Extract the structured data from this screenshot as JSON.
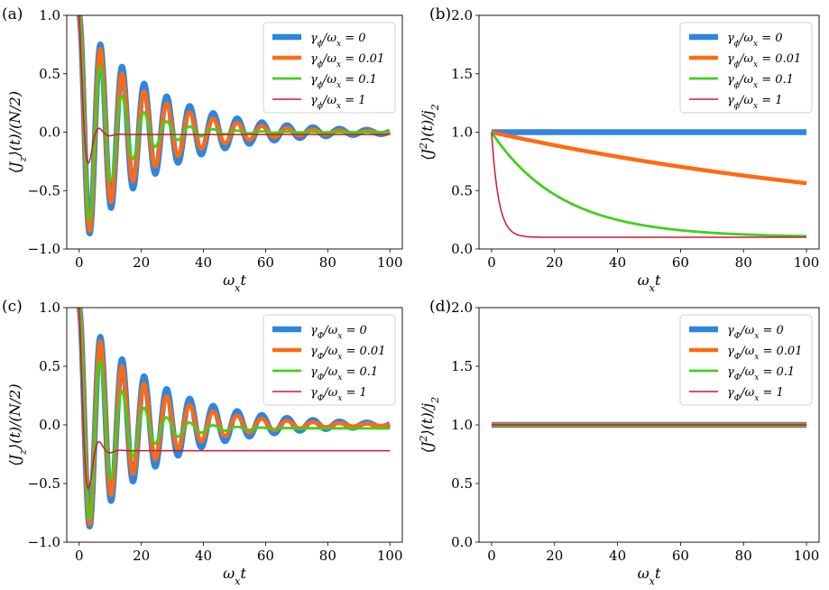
{
  "figure": {
    "colors": {
      "s0": "#2e86de",
      "s1": "#ff6a12",
      "s2": "#41d01c",
      "s3": "#d3172b"
    }
  },
  "chart_data": [
    {
      "panel": "(a)",
      "type": "line",
      "xlabel": "ω_x t",
      "ylabel": "⟨J_z⟩(t)/(N/2)",
      "xlim": [
        -4,
        104
      ],
      "ylim": [
        -1.0,
        1.0
      ],
      "xticks": [
        "0",
        "20",
        "40",
        "60",
        "80",
        "100"
      ],
      "yticks": [
        "−1.0",
        "−0.5",
        "0.0",
        "0.5",
        "1.0"
      ],
      "legend": {
        "position": "top-right",
        "prefix": "γ",
        "sub": "ϕ",
        "suffix": "/ω",
        "sub2": "x"
      },
      "series": [
        {
          "name": "0",
          "kind": "osc",
          "gamma": 0.042,
          "target": 0,
          "amp": 1
        },
        {
          "name": "0.01",
          "kind": "osc",
          "gamma": 0.05,
          "target": 0,
          "amp": 1
        },
        {
          "name": "0.1",
          "kind": "osc",
          "gamma": 0.085,
          "target": 0,
          "amp": 1
        },
        {
          "name": "1",
          "kind": "osc",
          "gamma": 0.45,
          "target": -0.02,
          "amp": 1
        }
      ]
    },
    {
      "panel": "(b)",
      "type": "line",
      "xlabel": "ω_x t",
      "ylabel": "⟨J²⟩(t)/j₂",
      "xlim": [
        -4,
        104
      ],
      "ylim": [
        0.0,
        2.0
      ],
      "xticks": [
        "0",
        "20",
        "40",
        "60",
        "80",
        "100"
      ],
      "yticks": [
        "0.0",
        "0.5",
        "1.0",
        "1.5",
        "2.0"
      ],
      "legend": {
        "position": "top-right",
        "prefix": "γ",
        "sub": "ϕ",
        "suffix": "/ω",
        "sub2": "x"
      },
      "series": [
        {
          "name": "0",
          "kind": "flat",
          "value": 1.0
        },
        {
          "name": "0.01",
          "kind": "decay",
          "rate": 0.00665,
          "floor": 0.1
        },
        {
          "name": "0.1",
          "kind": "decay",
          "rate": 0.045,
          "floor": 0.1
        },
        {
          "name": "1",
          "kind": "decay",
          "rate": 0.45,
          "floor": 0.1
        }
      ]
    },
    {
      "panel": "(c)",
      "type": "line",
      "xlabel": "ω_x t",
      "ylabel": "⟨J_z⟩(t)/(N/2)",
      "xlim": [
        -4,
        104
      ],
      "ylim": [
        -1.0,
        1.0
      ],
      "xticks": [
        "0",
        "20",
        "40",
        "60",
        "80",
        "100"
      ],
      "yticks": [
        "−1.0",
        "−0.5",
        "0.0",
        "0.5",
        "1.0"
      ],
      "legend": {
        "position": "top-right",
        "prefix": "γ",
        "sub": "Φ",
        "suffix": "/ω",
        "sub2": "x"
      },
      "series": [
        {
          "name": "0",
          "kind": "osc",
          "gamma": 0.042,
          "target": 0,
          "amp": 1
        },
        {
          "name": "0.01",
          "kind": "osc",
          "gamma": 0.05,
          "target": 0,
          "amp": 1
        },
        {
          "name": "0.1",
          "kind": "osc",
          "gamma": 0.085,
          "target": -0.03,
          "amp": 1
        },
        {
          "name": "1",
          "kind": "osc",
          "gamma": 0.42,
          "target": -0.22,
          "amp": 1
        }
      ]
    },
    {
      "panel": "(d)",
      "type": "line",
      "xlabel": "ω_x t",
      "ylabel": "⟨J²⟩(t)/j₂",
      "xlim": [
        -4,
        104
      ],
      "ylim": [
        0.0,
        2.0
      ],
      "xticks": [
        "0",
        "20",
        "40",
        "60",
        "80",
        "100"
      ],
      "yticks": [
        "0.0",
        "0.5",
        "1.0",
        "1.5",
        "2.0"
      ],
      "legend": {
        "position": "top-right",
        "prefix": "γ",
        "sub": "Φ",
        "suffix": "/ω",
        "sub2": "x"
      },
      "series": [
        {
          "name": "0",
          "kind": "flat",
          "value": 1.0
        },
        {
          "name": "0.01",
          "kind": "flat",
          "value": 1.0
        },
        {
          "name": "0.1",
          "kind": "flat",
          "value": 1.0
        },
        {
          "name": "1",
          "kind": "flat",
          "value": 1.0
        }
      ]
    }
  ]
}
